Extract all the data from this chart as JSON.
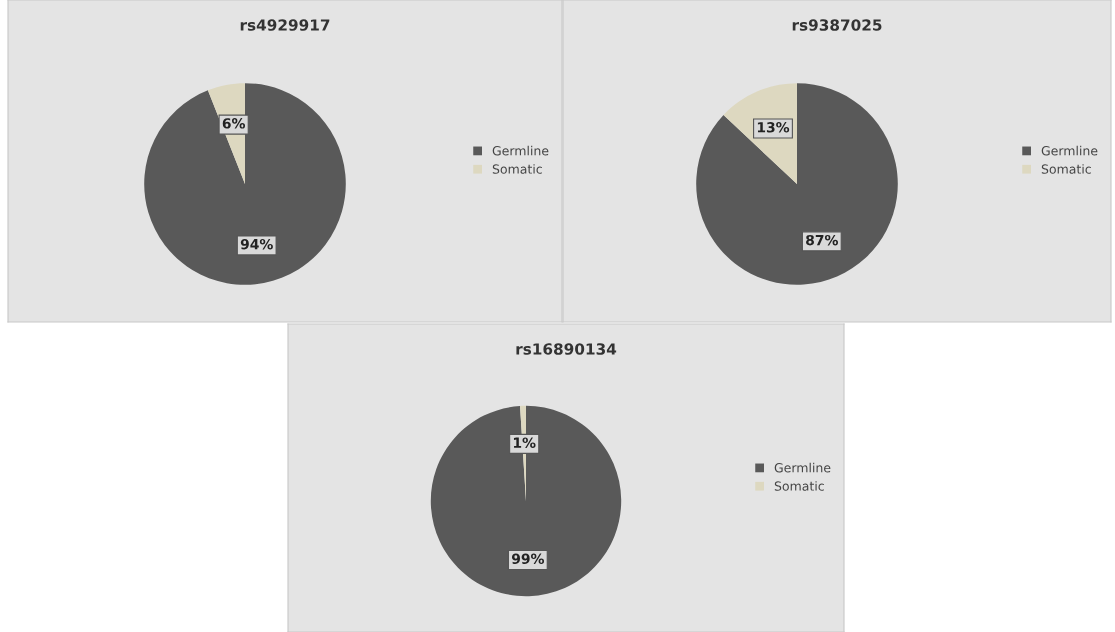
{
  "chart_data": [
    {
      "type": "pie",
      "title": "rs4929917",
      "categories": [
        "Germline",
        "Somatic"
      ],
      "values": [
        94,
        6
      ],
      "value_labels": [
        "94%",
        "6%"
      ],
      "colors": [
        "#595959",
        "#ddd8c0"
      ],
      "legend": "right"
    },
    {
      "type": "pie",
      "title": "rs9387025",
      "categories": [
        "Germline",
        "Somatic"
      ],
      "values": [
        87,
        13
      ],
      "value_labels": [
        "87%",
        "13%"
      ],
      "colors": [
        "#595959",
        "#ddd8c0"
      ],
      "legend": "right"
    },
    {
      "type": "pie",
      "title": "rs16890134",
      "categories": [
        "Germline",
        "Somatic"
      ],
      "values": [
        99,
        1
      ],
      "value_labels": [
        "99%",
        "1%"
      ],
      "colors": [
        "#595959",
        "#ddd8c0"
      ],
      "legend": "right"
    }
  ]
}
